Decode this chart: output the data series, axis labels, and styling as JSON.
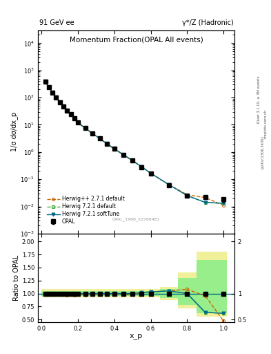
{
  "title_main": "Momentum Fraction(OPAL All events)",
  "header_left": "91 GeV ee",
  "header_right": "γ*/Z (Hadronic)",
  "ylabel_main": "1/σ dσ/dx_p",
  "ylabel_ratio": "Ratio to OPAL",
  "xlabel": "x_p",
  "watermark": "OPAL_1998_S3780481",
  "rivet_text": "Rivet 3.1.10, ≥ 3M events",
  "arxiv_text": "[arXiv:1306.3436]",
  "mcplots_text": "mcplots.cern.ch",
  "xp": [
    0.02,
    0.04,
    0.06,
    0.08,
    0.1,
    0.12,
    0.14,
    0.16,
    0.18,
    0.2,
    0.24,
    0.28,
    0.32,
    0.36,
    0.4,
    0.45,
    0.5,
    0.55,
    0.6,
    0.7,
    0.8,
    0.9,
    1.0
  ],
  "opal_y": [
    380,
    240,
    150,
    100,
    68,
    48,
    34,
    24,
    17,
    12,
    7.5,
    4.8,
    3.1,
    2.0,
    1.3,
    0.8,
    0.48,
    0.28,
    0.16,
    0.06,
    0.025,
    0.022,
    0.018
  ],
  "opal_yerr": [
    15,
    8,
    5,
    3.5,
    2.5,
    1.8,
    1.3,
    1.0,
    0.7,
    0.5,
    0.3,
    0.2,
    0.13,
    0.09,
    0.06,
    0.04,
    0.025,
    0.015,
    0.01,
    0.005,
    0.003,
    0.003,
    0.003
  ],
  "hpp_y": [
    375,
    238,
    148,
    99,
    67,
    47,
    33,
    23.5,
    16.5,
    11.8,
    7.3,
    4.7,
    3.05,
    1.95,
    1.28,
    0.78,
    0.47,
    0.285,
    0.165,
    0.063,
    0.027,
    0.021,
    0.011
  ],
  "hw721_y": [
    378,
    240,
    150,
    100,
    68,
    48,
    34,
    24,
    17,
    12,
    7.5,
    4.8,
    3.1,
    2.0,
    1.3,
    0.8,
    0.48,
    0.285,
    0.165,
    0.063,
    0.025,
    0.014,
    0.013
  ],
  "soft_y": [
    378,
    240,
    150,
    100,
    68,
    48,
    34,
    24,
    17,
    12,
    7.5,
    4.8,
    3.1,
    2.0,
    1.3,
    0.8,
    0.48,
    0.285,
    0.165,
    0.063,
    0.025,
    0.014,
    0.013
  ],
  "ratio_hpp": [
    0.987,
    0.992,
    0.987,
    0.99,
    0.985,
    0.979,
    0.971,
    0.979,
    0.971,
    0.983,
    0.973,
    0.979,
    0.984,
    0.975,
    0.985,
    0.975,
    0.979,
    1.018,
    1.031,
    1.05,
    1.08,
    0.955,
    0.472
  ],
  "ratio_hw721": [
    0.995,
    1.0,
    1.0,
    1.0,
    1.0,
    1.0,
    1.0,
    1.0,
    1.0,
    1.0,
    1.0,
    1.0,
    1.0,
    1.0,
    1.0,
    1.0,
    1.0,
    1.018,
    1.031,
    1.05,
    1.0,
    0.636,
    0.62
  ],
  "ratio_soft": [
    0.995,
    1.0,
    1.0,
    1.0,
    1.0,
    1.0,
    1.0,
    1.0,
    1.0,
    1.0,
    1.0,
    1.0,
    1.0,
    1.0,
    1.0,
    1.0,
    1.0,
    1.018,
    1.031,
    1.05,
    1.0,
    0.636,
    0.62
  ],
  "band_hw721_edges": [
    0.0,
    0.35,
    0.55,
    0.65,
    0.75,
    0.85,
    1.02
  ],
  "band_hw721_low": [
    0.95,
    0.95,
    0.95,
    0.92,
    0.78,
    0.62,
    0.62
  ],
  "band_hw721_high": [
    1.05,
    1.05,
    1.05,
    1.08,
    1.3,
    1.65,
    1.65
  ],
  "band_hpp_edges": [
    0.0,
    0.35,
    0.55,
    0.65,
    0.75,
    0.85,
    1.02
  ],
  "band_hpp_low": [
    0.93,
    0.93,
    0.93,
    0.88,
    0.72,
    0.55,
    0.55
  ],
  "band_hpp_high": [
    1.08,
    1.08,
    1.08,
    1.12,
    1.4,
    1.8,
    1.8
  ],
  "color_opal": "#000000",
  "color_hpp": "#cc6600",
  "color_hw721": "#44aa44",
  "color_soft": "#006688",
  "color_band_hw721": "#88ee88",
  "color_band_hpp": "#eeee88",
  "ylim_main": [
    0.001,
    30000.0
  ],
  "ylim_ratio": [
    0.45,
    2.15
  ],
  "legend_labels": [
    "OPAL",
    "Herwig++ 2.7.1 default",
    "Herwig 7.2.1 default",
    "Herwig 7.2.1 softTune"
  ]
}
